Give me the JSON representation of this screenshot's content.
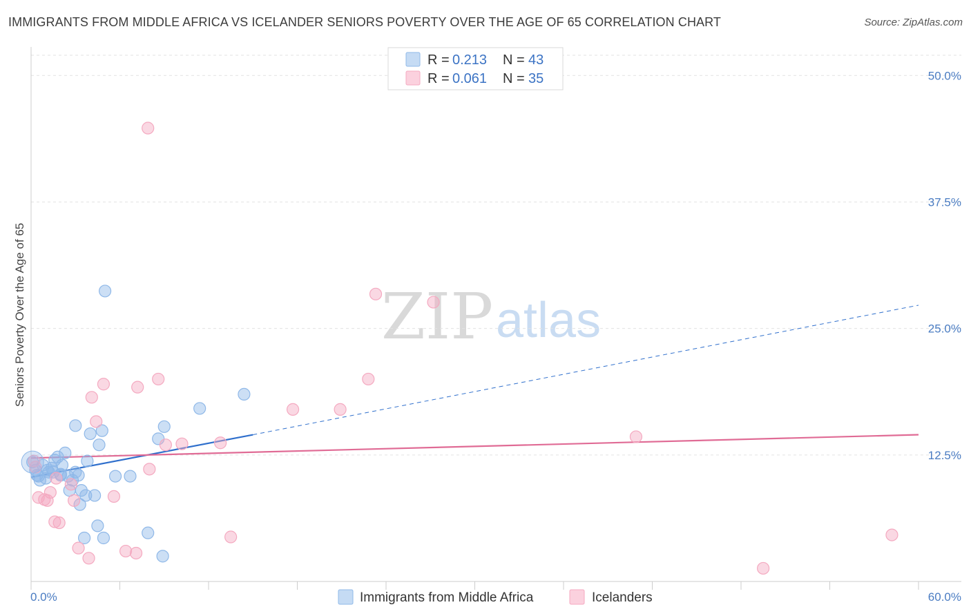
{
  "title": "IMMIGRANTS FROM MIDDLE AFRICA VS ICELANDER SENIORS POVERTY OVER THE AGE OF 65 CORRELATION CHART",
  "source": "Source: ZipAtlas.com",
  "watermark": {
    "zip": "ZIP",
    "atlas": "atlas"
  },
  "colors": {
    "blue": "#8fb8e8",
    "blue_line": "#2f6fcc",
    "pink": "#f4a9c0",
    "pink_line": "#e06b95",
    "tick": "#4a7cc2",
    "grid": "#e2e2e2"
  },
  "legend": {
    "rows": [
      {
        "r_label": "R =",
        "r_value": "0.213",
        "n_label": "N =",
        "n_value": "43"
      },
      {
        "r_label": "R =",
        "r_value": "0.061",
        "n_label": "N =",
        "n_value": "35"
      }
    ]
  },
  "chart_data": {
    "type": "scatter",
    "title": "IMMIGRANTS FROM MIDDLE AFRICA VS ICELANDER SENIORS POVERTY OVER THE AGE OF 65 CORRELATION CHART",
    "xlabel": "",
    "ylabel": "Seniors Poverty Over the Age of 65",
    "xlim": [
      0,
      60
    ],
    "ylim": [
      0,
      52
    ],
    "x_tick_labels": [
      "0.0%",
      "60.0%"
    ],
    "y_ticks": [
      12.5,
      25.0,
      37.5,
      50.0
    ],
    "y_tick_labels": [
      "12.5%",
      "25.0%",
      "37.5%",
      "50.0%"
    ],
    "grid": true,
    "legend_position": "top-center",
    "series": [
      {
        "name": "Immigrants from Middle Africa",
        "color": "#8fb8e8",
        "line_color": "#2f6fcc",
        "trend": {
          "x0": 0,
          "y0": 10.3,
          "x1": 15,
          "y1": 14.5,
          "dash_x_end": 60,
          "dash_y_end": 27.3
        },
        "points": [
          [
            0.1,
            11.8
          ],
          [
            0.3,
            11.0
          ],
          [
            0.4,
            10.5
          ],
          [
            0.6,
            10.0
          ],
          [
            0.8,
            11.5
          ],
          [
            1.0,
            10.2
          ],
          [
            1.2,
            10.8
          ],
          [
            1.4,
            11.2
          ],
          [
            1.6,
            12.0
          ],
          [
            1.8,
            12.3
          ],
          [
            2.0,
            10.6
          ],
          [
            2.1,
            11.5
          ],
          [
            2.3,
            12.7
          ],
          [
            2.5,
            10.4
          ],
          [
            2.6,
            9.0
          ],
          [
            2.8,
            10.0
          ],
          [
            3.0,
            10.8
          ],
          [
            3.2,
            10.5
          ],
          [
            3.3,
            7.6
          ],
          [
            3.4,
            9.0
          ],
          [
            3.6,
            4.3
          ],
          [
            3.7,
            8.5
          ],
          [
            3.8,
            11.9
          ],
          [
            4.0,
            14.6
          ],
          [
            4.3,
            8.5
          ],
          [
            4.5,
            5.5
          ],
          [
            4.6,
            13.5
          ],
          [
            4.8,
            14.9
          ],
          [
            4.9,
            4.3
          ],
          [
            5.0,
            28.7
          ],
          [
            5.7,
            10.4
          ],
          [
            6.7,
            10.4
          ],
          [
            7.9,
            4.8
          ],
          [
            8.6,
            14.1
          ],
          [
            8.9,
            2.5
          ],
          [
            9.0,
            15.3
          ],
          [
            11.4,
            17.1
          ],
          [
            14.4,
            18.5
          ],
          [
            3.0,
            15.4
          ],
          [
            1.5,
            10.8
          ],
          [
            0.5,
            10.4
          ],
          [
            2.0,
            10.5
          ],
          [
            1.1,
            11.0
          ]
        ]
      },
      {
        "name": "Icelanders",
        "color": "#f4a9c0",
        "line_color": "#e06b95",
        "trend": {
          "x0": 0,
          "y0": 12.2,
          "x1": 60,
          "y1": 14.5
        },
        "points": [
          [
            0.2,
            11.9
          ],
          [
            0.5,
            8.3
          ],
          [
            0.9,
            8.1
          ],
          [
            1.1,
            8.0
          ],
          [
            1.3,
            8.8
          ],
          [
            1.6,
            5.9
          ],
          [
            1.9,
            5.8
          ],
          [
            2.7,
            9.6
          ],
          [
            2.9,
            8.0
          ],
          [
            3.2,
            3.3
          ],
          [
            3.9,
            2.3
          ],
          [
            4.1,
            18.2
          ],
          [
            4.4,
            15.8
          ],
          [
            4.9,
            19.5
          ],
          [
            5.6,
            8.4
          ],
          [
            6.4,
            3.0
          ],
          [
            7.1,
            2.8
          ],
          [
            7.2,
            19.2
          ],
          [
            7.9,
            44.8
          ],
          [
            8.0,
            11.1
          ],
          [
            8.6,
            20.0
          ],
          [
            9.1,
            13.5
          ],
          [
            10.2,
            13.6
          ],
          [
            12.8,
            13.7
          ],
          [
            13.5,
            4.4
          ],
          [
            17.7,
            17.0
          ],
          [
            20.9,
            17.0
          ],
          [
            22.8,
            20.0
          ],
          [
            23.3,
            28.4
          ],
          [
            27.2,
            27.6
          ],
          [
            40.9,
            14.3
          ],
          [
            49.5,
            1.3
          ],
          [
            58.2,
            4.6
          ],
          [
            0.3,
            11.3
          ],
          [
            1.7,
            10.2
          ]
        ]
      }
    ]
  },
  "bottom_legend": {
    "items": [
      {
        "label": "Immigrants from Middle Africa"
      },
      {
        "label": "Icelanders"
      }
    ]
  }
}
